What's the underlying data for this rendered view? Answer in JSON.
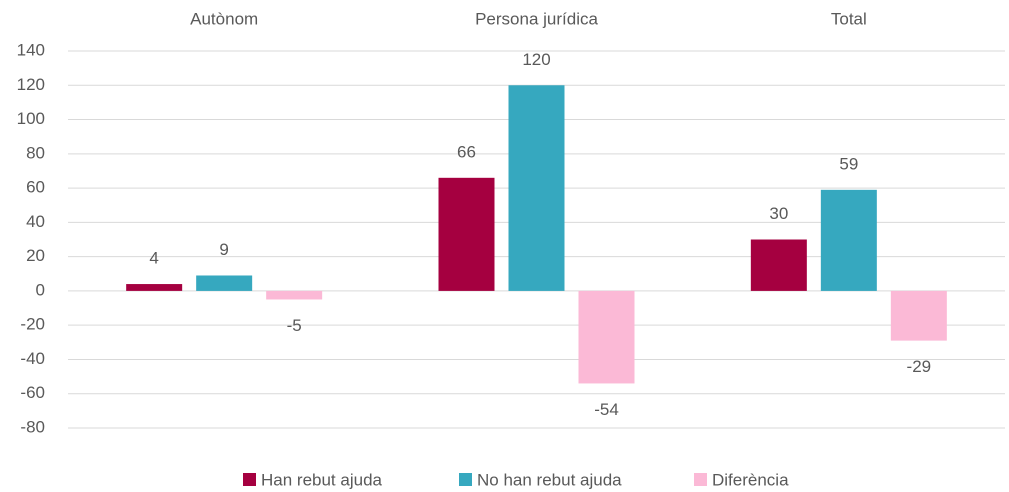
{
  "chart_data": {
    "type": "bar",
    "categories": [
      "Autònom",
      "Persona jurídica",
      "Total"
    ],
    "series": [
      {
        "name": "Han rebut ajuda",
        "color": "#a50040",
        "values": [
          4,
          66,
          30
        ]
      },
      {
        "name": "No han rebut ajuda",
        "color": "#36a8bf",
        "values": [
          9,
          120,
          59
        ]
      },
      {
        "name": "Diferència",
        "color": "#fbb9d6",
        "values": [
          -5,
          -54,
          -29
        ]
      }
    ],
    "ylim": [
      -80,
      140
    ],
    "yticks": [
      -80,
      -60,
      -40,
      -20,
      0,
      20,
      40,
      60,
      80,
      100,
      120,
      140
    ],
    "grid": true,
    "legend": "bottom"
  }
}
